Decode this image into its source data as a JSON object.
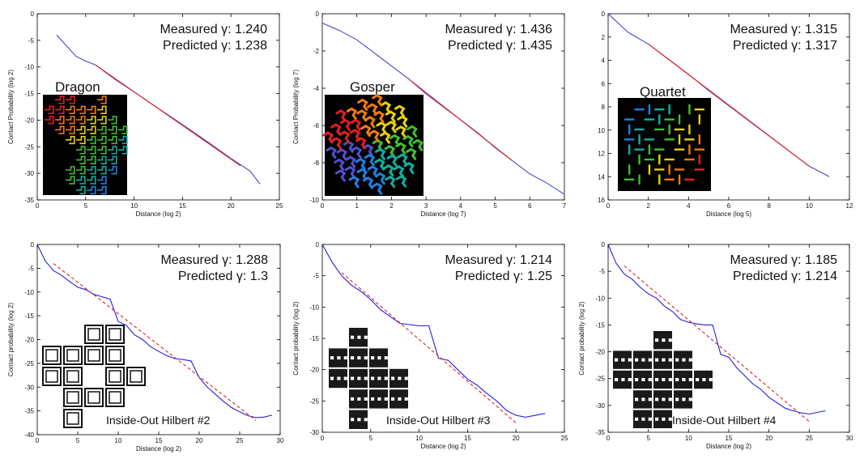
{
  "chart_data": [
    {
      "type": "line",
      "xlabel": "Distance (log 2)",
      "ylabel": "Contact Probability (log 2)",
      "xlim": [
        0,
        25
      ],
      "ylim": [
        -35,
        0
      ],
      "xticks": [
        "0",
        "5",
        "10",
        "15",
        "20",
        "25"
      ],
      "yticks": [
        "0",
        "-5",
        "-10",
        "-15",
        "-20",
        "-25",
        "-30",
        "-35"
      ],
      "annotations": [
        "Measured γ: 1.240",
        "Predicted γ:  1.238"
      ],
      "inset_title": "Dragon",
      "inset_label": "",
      "inset_style": "dragon",
      "series": [
        {
          "name": "measured",
          "color": "#4444cc",
          "dashed": false,
          "x": [
            2,
            3,
            4,
            5,
            6,
            8,
            10,
            12,
            14,
            16,
            18,
            20,
            21,
            22,
            23
          ],
          "y": [
            -4,
            -6,
            -8,
            -8.9,
            -9.6,
            -12.3,
            -14.7,
            -17.2,
            -19.6,
            -22.1,
            -24.6,
            -27.2,
            -28.4,
            -29.6,
            -32
          ]
        },
        {
          "name": "predicted",
          "color": "#dd2222",
          "dashed": false,
          "x": [
            6,
            21
          ],
          "y": [
            -9.6,
            -28.6
          ]
        }
      ]
    },
    {
      "type": "line",
      "xlabel": "Distance (log 7)",
      "ylabel": "Contact Probability (log 7)",
      "xlim": [
        0,
        7
      ],
      "ylim": [
        -10,
        0
      ],
      "xticks": [
        "0",
        "1",
        "2",
        "3",
        "4",
        "5",
        "6",
        "7"
      ],
      "yticks": [
        "0",
        "-2",
        "-4",
        "-6",
        "-8",
        "-10"
      ],
      "annotations": [
        "Measured γ: 1.436",
        "Predicted γ:  1.435"
      ],
      "inset_title": "Gosper",
      "inset_label": "",
      "inset_style": "gosper",
      "series": [
        {
          "name": "measured",
          "color": "#4444cc",
          "dashed": false,
          "x": [
            0,
            0.5,
            1,
            1.5,
            2,
            2.5,
            3,
            3.5,
            4,
            4.5,
            5,
            5.5,
            6,
            6.5,
            7
          ],
          "y": [
            -0.5,
            -0.9,
            -1.4,
            -2.1,
            -2.8,
            -3.5,
            -4.3,
            -5.0,
            -5.7,
            -6.4,
            -7.2,
            -7.9,
            -8.6,
            -9.1,
            -9.7
          ]
        },
        {
          "name": "predicted",
          "color": "#dd2222",
          "dashed": false,
          "x": [
            2.5,
            5.5
          ],
          "y": [
            -3.5,
            -7.9
          ]
        }
      ]
    },
    {
      "type": "line",
      "xlabel": "Distance (log 5)",
      "ylabel": "",
      "xlim": [
        0,
        12
      ],
      "ylim": [
        16,
        0
      ],
      "xticks": [
        "0",
        "2",
        "4",
        "6",
        "8",
        "10",
        "12"
      ],
      "yticks": [
        "0",
        "2",
        "4",
        "6",
        "8",
        "10",
        "12",
        "14",
        "16"
      ],
      "annotations": [
        "Measured γ: 1.315",
        "Predicted γ:  1.317"
      ],
      "inset_title": "Quartet",
      "inset_label": "",
      "inset_style": "quartet",
      "series": [
        {
          "name": "measured",
          "color": "#4444cc",
          "dashed": false,
          "x": [
            0,
            0.5,
            1,
            2,
            3,
            4,
            5,
            6,
            7,
            8,
            9,
            10,
            11
          ],
          "y": [
            0,
            0.8,
            1.6,
            2.6,
            3.9,
            5.2,
            6.6,
            7.9,
            9.2,
            10.5,
            11.8,
            13.1,
            14
          ]
        },
        {
          "name": "predicted",
          "color": "#dd2222",
          "dashed": false,
          "x": [
            2,
            10
          ],
          "y": [
            2.6,
            13.1
          ]
        }
      ]
    },
    {
      "type": "line",
      "xlabel": "Distance (log 2)",
      "ylabel": "Contact probability (log 2)",
      "xlim": [
        0,
        30
      ],
      "ylim": [
        -40,
        0
      ],
      "xticks": [
        "0",
        "5",
        "10",
        "15",
        "20",
        "25",
        "30"
      ],
      "yticks": [
        "0",
        "-5",
        "-10",
        "-15",
        "-20",
        "-25",
        "-30",
        "-35",
        "-40"
      ],
      "annotations": [
        "Measured γ: 1.288",
        "Predicted γ:  1.3"
      ],
      "inset_title": "",
      "inset_label": "Inside-Out Hilbert #2",
      "inset_style": "hilbert2",
      "series": [
        {
          "name": "measured",
          "color": "#2222dd",
          "dashed": false,
          "x": [
            0,
            1,
            2,
            3,
            4,
            5,
            6,
            7,
            8,
            9,
            10,
            11,
            12,
            13,
            14,
            15,
            16,
            17,
            18,
            19,
            20,
            21,
            22,
            23,
            24,
            25,
            26,
            27,
            28,
            29
          ],
          "y": [
            0,
            -3.5,
            -5.5,
            -6.5,
            -7.8,
            -9,
            -9.5,
            -10.5,
            -11,
            -11.5,
            -16.2,
            -17,
            -19,
            -20,
            -21.5,
            -22.5,
            -23.4,
            -24,
            -24.2,
            -24.5,
            -28,
            -30,
            -31.5,
            -33,
            -34.3,
            -35.2,
            -36,
            -36.4,
            -36.3,
            -35.9
          ]
        },
        {
          "name": "predicted",
          "color": "#dd2222",
          "dashed": true,
          "x": [
            2,
            27
          ],
          "y": [
            -4,
            -37
          ]
        }
      ]
    },
    {
      "type": "line",
      "xlabel": "Distance (log 2)",
      "ylabel": "Contact probability (log 2)",
      "xlim": [
        0,
        25
      ],
      "ylim": [
        -30,
        0
      ],
      "xticks": [
        "0",
        "5",
        "10",
        "15",
        "20",
        "25"
      ],
      "yticks": [
        "0",
        "-5",
        "-10",
        "-15",
        "-20",
        "-25",
        "-30"
      ],
      "annotations": [
        "Measured γ: 1.214",
        "Predicted γ:  1.25"
      ],
      "inset_title": "",
      "inset_label": "Inside-Out Hilbert #3",
      "inset_style": "hilbert3",
      "series": [
        {
          "name": "measured",
          "color": "#2222dd",
          "dashed": false,
          "x": [
            0,
            1,
            2,
            3,
            4,
            5,
            6,
            7,
            8,
            9,
            10,
            11,
            12,
            13,
            14,
            15,
            16,
            17,
            18,
            19,
            20,
            21,
            22,
            23
          ],
          "y": [
            0,
            -2.8,
            -5,
            -6.5,
            -7.5,
            -8.8,
            -10.4,
            -11.5,
            -12.6,
            -12.8,
            -13,
            -13,
            -18.2,
            -18.5,
            -20,
            -21.5,
            -22.5,
            -23.8,
            -25,
            -26.5,
            -27.3,
            -27.6,
            -27.3,
            -27
          ]
        },
        {
          "name": "predicted",
          "color": "#dd2222",
          "dashed": true,
          "x": [
            2,
            20
          ],
          "y": [
            -4.5,
            -28.5
          ]
        }
      ]
    },
    {
      "type": "line",
      "xlabel": "Distance (log 2)",
      "ylabel": "Contact probability (log 2)",
      "xlim": [
        0,
        30
      ],
      "ylim": [
        -35,
        0
      ],
      "xticks": [
        "0",
        "5",
        "10",
        "15",
        "20",
        "25",
        "30"
      ],
      "yticks": [
        "0",
        "-5",
        "-10",
        "-15",
        "-20",
        "-25",
        "-30",
        "-35"
      ],
      "annotations": [
        "Measured γ: 1.185",
        "Predicted γ:  1.214"
      ],
      "inset_title": "",
      "inset_label": "Inside-Out Hilbert #4",
      "inset_style": "hilbert4",
      "series": [
        {
          "name": "measured",
          "color": "#2222dd",
          "dashed": false,
          "x": [
            0,
            1,
            2,
            3,
            4,
            5,
            6,
            7,
            8,
            9,
            10,
            11,
            12,
            13,
            14,
            15,
            16,
            17,
            18,
            19,
            20,
            21,
            22,
            23,
            24,
            25,
            26,
            27
          ],
          "y": [
            0,
            -3.5,
            -5.5,
            -6.5,
            -8,
            -9.2,
            -10,
            -11.5,
            -12.5,
            -14,
            -14.5,
            -14.8,
            -15,
            -15,
            -20.5,
            -21,
            -23,
            -24.5,
            -26,
            -27,
            -28.5,
            -29.5,
            -30.5,
            -31,
            -31.4,
            -31.6,
            -31.3,
            -31
          ]
        },
        {
          "name": "predicted",
          "color": "#dd2222",
          "dashed": true,
          "x": [
            2,
            25
          ],
          "y": [
            -4,
            -33
          ]
        }
      ]
    }
  ]
}
